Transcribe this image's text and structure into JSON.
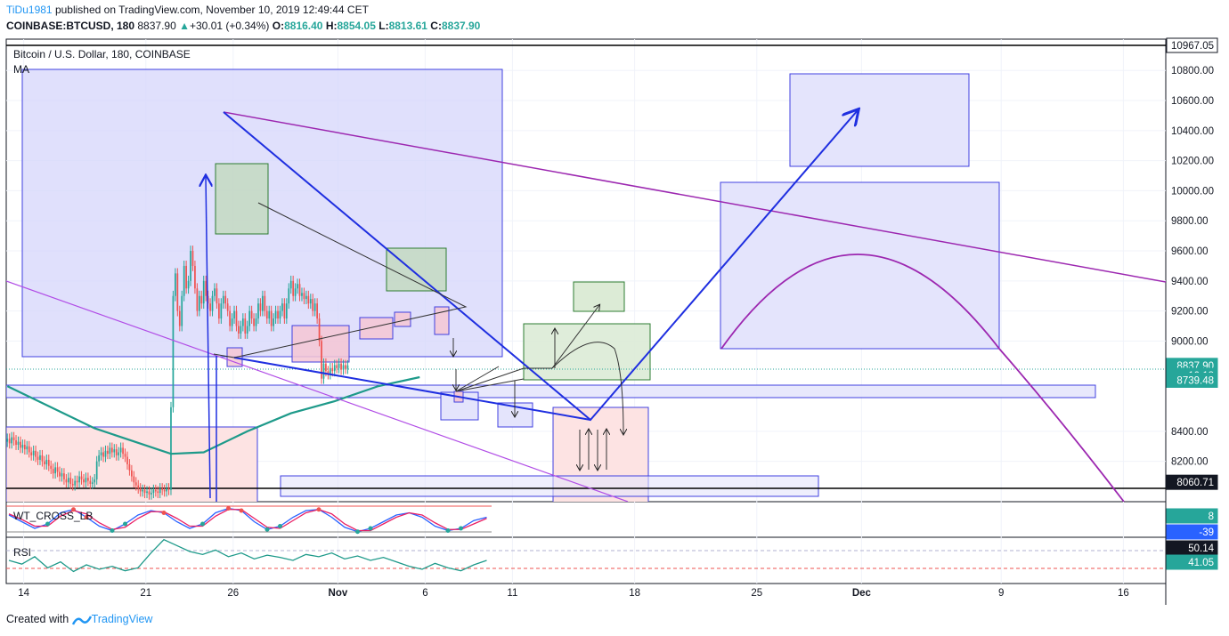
{
  "header": {
    "user": "TiDu1981",
    "published": "published on TradingView.com, November 10, 2019 12:49:44 CET",
    "symbol": "COINBASE:BTCUSD, 180",
    "last": "8837.90",
    "change": "+30.01 (+0.34%)",
    "open_label": "O:",
    "open": "8816.40",
    "high_label": "H:",
    "high": "8854.05",
    "low_label": "L:",
    "low": "8813.61",
    "close_label": "C:",
    "close": "8837.90"
  },
  "chart_title": "Bitcoin / U.S. Dollar, 180, COINBASE",
  "indicator_ma": "MA",
  "indicator_wt": "WT_CROSS_LB",
  "indicator_rsi": "RSI",
  "footer": {
    "created_with": "Created with",
    "brand": "TradingView"
  },
  "colors": {
    "up": "#26a69a",
    "down": "#ef5350",
    "ma": "#1e9a8a",
    "blue_box": "#4040e0",
    "purple": "#9c27b0",
    "arrow_blue": "#1f2fe0"
  },
  "chart_data": {
    "type": "candlestick",
    "price_axis": [
      "10800.00",
      "10600.00",
      "10400.00",
      "10200.00",
      "10000.00",
      "9800.00",
      "9600.00",
      "9400.00",
      "9200.00",
      "9000.00",
      "8400.00",
      "8200.00"
    ],
    "ylim": [
      8000,
      10967.05
    ],
    "price_labels": [
      {
        "value": "10967.05",
        "price": 10967.05,
        "style": "outline"
      },
      {
        "value": "8837.90",
        "price": 8837.9,
        "style": "green"
      },
      {
        "value": "10:18",
        "price": 8772,
        "style": "green"
      },
      {
        "value": "8739.48",
        "price": 8739.48,
        "style": "green"
      },
      {
        "value": "8060.71",
        "price": 8060.71,
        "style": "dark"
      }
    ],
    "wt_labels": [
      {
        "value": "8",
        "style": "green"
      },
      {
        "value": "-39",
        "style": "blue"
      }
    ],
    "rsi_labels": [
      {
        "value": "50.14",
        "style": "dark"
      },
      {
        "value": "41.05",
        "style": "green"
      }
    ],
    "time_axis": [
      "14",
      "21",
      "26",
      "Nov",
      "6",
      "11",
      "18",
      "25",
      "Dec",
      "9",
      "16"
    ],
    "bars_per_day": 8,
    "start_date": "2019-10-13",
    "candles": [
      [
        8330,
        8350
      ],
      [
        8350,
        8320
      ],
      [
        8320,
        8360
      ],
      [
        8360,
        8340
      ],
      [
        8340,
        8310
      ],
      [
        8310,
        8330
      ],
      [
        8330,
        8290
      ],
      [
        8290,
        8310
      ],
      [
        8310,
        8280
      ],
      [
        8280,
        8300
      ],
      [
        8300,
        8260
      ],
      [
        8260,
        8240
      ],
      [
        8240,
        8270
      ],
      [
        8270,
        8230
      ],
      [
        8230,
        8210
      ],
      [
        8210,
        8240
      ],
      [
        8240,
        8200
      ],
      [
        8200,
        8180
      ],
      [
        8180,
        8210
      ],
      [
        8210,
        8170
      ],
      [
        8170,
        8150
      ],
      [
        8150,
        8120
      ],
      [
        8120,
        8160
      ],
      [
        8160,
        8130
      ],
      [
        8130,
        8100
      ],
      [
        8100,
        8120
      ],
      [
        8120,
        8080
      ],
      [
        8080,
        8060
      ],
      [
        8060,
        8090
      ],
      [
        8090,
        8050
      ],
      [
        8050,
        8040
      ],
      [
        8040,
        8070
      ],
      [
        8070,
        8060
      ],
      [
        8060,
        8100
      ],
      [
        8100,
        8080
      ],
      [
        8080,
        8060
      ],
      [
        8060,
        8090
      ],
      [
        8090,
        8070
      ],
      [
        8070,
        8050
      ],
      [
        8050,
        8060
      ],
      [
        8060,
        8080
      ],
      [
        8080,
        8200
      ],
      [
        8200,
        8240
      ],
      [
        8240,
        8260
      ],
      [
        8260,
        8230
      ],
      [
        8230,
        8270
      ],
      [
        8270,
        8250
      ],
      [
        8250,
        8290
      ],
      [
        8290,
        8260
      ],
      [
        8260,
        8280
      ],
      [
        8280,
        8240
      ],
      [
        8240,
        8260
      ],
      [
        8260,
        8290
      ],
      [
        8290,
        8250
      ],
      [
        8250,
        8230
      ],
      [
        8230,
        8180
      ],
      [
        8180,
        8140
      ],
      [
        8140,
        8100
      ],
      [
        8100,
        8060
      ],
      [
        8060,
        8040
      ],
      [
        8040,
        8020
      ],
      [
        8020,
        8000
      ],
      [
        8000,
        8010
      ],
      [
        8010,
        7990
      ],
      [
        7990,
        8000
      ],
      [
        8000,
        7980
      ],
      [
        7980,
        7990
      ],
      [
        7990,
        8010
      ],
      [
        8010,
        8000
      ],
      [
        8000,
        7990
      ],
      [
        7990,
        8020
      ],
      [
        8020,
        8010
      ],
      [
        8010,
        8000
      ],
      [
        8000,
        8020
      ],
      [
        8020,
        8010
      ],
      [
        8010,
        8560
      ],
      [
        8560,
        9300
      ],
      [
        9300,
        9450
      ],
      [
        9450,
        9200
      ],
      [
        9200,
        9100
      ],
      [
        9100,
        9300
      ],
      [
        9300,
        9500
      ],
      [
        9500,
        9350
      ],
      [
        9350,
        9400
      ],
      [
        9400,
        9600
      ],
      [
        9600,
        9500
      ],
      [
        9500,
        9350
      ],
      [
        9350,
        9200
      ],
      [
        9200,
        9300
      ],
      [
        9300,
        9250
      ],
      [
        9250,
        9400
      ],
      [
        9400,
        9300
      ],
      [
        9300,
        9250
      ],
      [
        9250,
        9200
      ],
      [
        9200,
        9300
      ],
      [
        9300,
        9350
      ],
      [
        9350,
        9250
      ],
      [
        9250,
        9150
      ],
      [
        9150,
        9250
      ],
      [
        9250,
        9300
      ],
      [
        9300,
        9250
      ],
      [
        9250,
        9200
      ],
      [
        9200,
        9100
      ],
      [
        9100,
        9150
      ],
      [
        9150,
        9200
      ],
      [
        9200,
        9100
      ],
      [
        9100,
        9050
      ],
      [
        9050,
        9100
      ],
      [
        9100,
        9150
      ],
      [
        9150,
        9050
      ],
      [
        9050,
        9100
      ],
      [
        9100,
        9200
      ],
      [
        9200,
        9150
      ],
      [
        9150,
        9100
      ],
      [
        9100,
        9150
      ],
      [
        9150,
        9250
      ],
      [
        9250,
        9200
      ],
      [
        9200,
        9300
      ],
      [
        9300,
        9200
      ],
      [
        9200,
        9150
      ],
      [
        9150,
        9200
      ],
      [
        9200,
        9100
      ],
      [
        9100,
        9150
      ],
      [
        9150,
        9200
      ],
      [
        9200,
        9150
      ],
      [
        9150,
        9200
      ],
      [
        9200,
        9250
      ],
      [
        9250,
        9150
      ],
      [
        9150,
        9250
      ],
      [
        9250,
        9350
      ],
      [
        9350,
        9400
      ],
      [
        9400,
        9300
      ],
      [
        9300,
        9350
      ],
      [
        9350,
        9380
      ],
      [
        9380,
        9300
      ],
      [
        9300,
        9320
      ],
      [
        9320,
        9280
      ],
      [
        9280,
        9300
      ],
      [
        9300,
        9250
      ],
      [
        9250,
        9280
      ],
      [
        9280,
        9200
      ],
      [
        9200,
        9250
      ],
      [
        9250,
        9150
      ],
      [
        9150,
        9000
      ],
      [
        9000,
        8750
      ],
      [
        8750,
        8850
      ],
      [
        8850,
        8800
      ],
      [
        8800,
        8780
      ],
      [
        8780,
        8820
      ],
      [
        8820,
        8800
      ],
      [
        8800,
        8840
      ],
      [
        8840,
        8820
      ],
      [
        8820,
        8850
      ],
      [
        8850,
        8810
      ],
      [
        8810,
        8840
      ],
      [
        8840,
        8816
      ],
      [
        8816,
        8838
      ]
    ],
    "ma_points": [
      [
        0,
        8700
      ],
      [
        40,
        8420
      ],
      [
        75,
        8250
      ],
      [
        90,
        8260
      ],
      [
        110,
        8400
      ],
      [
        130,
        8520
      ],
      [
        150,
        8600
      ],
      [
        170,
        8700
      ],
      [
        189,
        8760
      ]
    ],
    "wt_range": [
      -60,
      60
    ],
    "wt_series": [
      {
        "name": "wt1",
        "color": "#2962ff",
        "values": [
          20,
          -10,
          -40,
          -20,
          30,
          45,
          10,
          -30,
          -50,
          -20,
          20,
          40,
          30,
          -10,
          -40,
          -20,
          30,
          50,
          40,
          -10,
          -45,
          -30,
          10,
          40,
          45,
          10,
          -35,
          -55,
          -40,
          -10,
          20,
          30,
          10,
          -30,
          -50,
          -40,
          -5,
          10
        ]
      },
      {
        "name": "wt2",
        "color": "#e91e63",
        "values": [
          25,
          0,
          -30,
          -30,
          15,
          40,
          25,
          -15,
          -45,
          -35,
          5,
          35,
          35,
          5,
          -30,
          -30,
          15,
          45,
          45,
          5,
          -35,
          -40,
          -5,
          30,
          45,
          25,
          -20,
          -50,
          -50,
          -20,
          10,
          30,
          20,
          -15,
          -45,
          -45,
          -20,
          5
        ]
      }
    ],
    "rsi_range": [
      20,
      80
    ],
    "rsi_series": [
      {
        "name": "rsi",
        "color": "#1e9a8a",
        "values": [
          50,
          45,
          55,
          40,
          48,
          35,
          44,
          38,
          42,
          36,
          40,
          60,
          78,
          70,
          62,
          58,
          64,
          55,
          60,
          52,
          57,
          54,
          50,
          58,
          55,
          60,
          52,
          56,
          50,
          54,
          48,
          42,
          38,
          46,
          40,
          36,
          44,
          50
        ]
      }
    ]
  }
}
